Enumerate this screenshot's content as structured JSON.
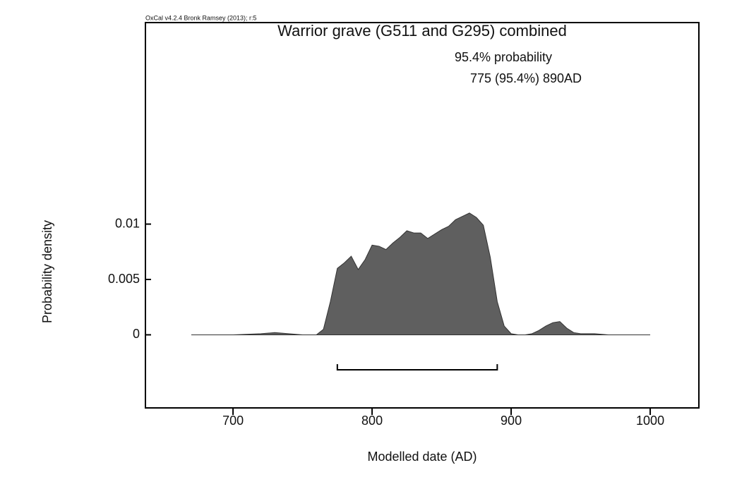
{
  "chart_data": {
    "type": "area",
    "credit": "OxCal v4.2.4 Bronk Ramsey (2013); r:5",
    "title": "Warrior grave (G511 and G295) combined",
    "probability_label": "95.4% probability",
    "range_label": "775 (95.4%) 890AD",
    "range": [
      775,
      890
    ],
    "x_label": "Modelled date (AD)",
    "y_label": "Probability density",
    "xlim": [
      637,
      1035
    ],
    "ylim": [
      -0.0066,
      0.0282
    ],
    "xticks": [
      700,
      800,
      900,
      1000
    ],
    "yticks": [
      0,
      0.005,
      0.01
    ],
    "x": [
      670,
      700,
      720,
      730,
      740,
      750,
      760,
      765,
      770,
      775,
      780,
      785,
      790,
      795,
      800,
      805,
      810,
      815,
      820,
      825,
      830,
      835,
      840,
      845,
      850,
      855,
      860,
      865,
      870,
      875,
      880,
      885,
      890,
      895,
      900,
      905,
      910,
      915,
      920,
      925,
      930,
      935,
      940,
      945,
      950,
      960,
      970,
      1000
    ],
    "series": [
      {
        "color": "#5f5f5f",
        "values": [
          0,
          0,
          0.0001,
          0.0002,
          0.0001,
          0,
          0,
          0.0005,
          0.003,
          0.006,
          0.0065,
          0.0071,
          0.0059,
          0.0068,
          0.0081,
          0.008,
          0.0077,
          0.0083,
          0.0088,
          0.0094,
          0.0092,
          0.0092,
          0.0087,
          0.0091,
          0.0095,
          0.0098,
          0.0104,
          0.0107,
          0.011,
          0.0106,
          0.0099,
          0.007,
          0.003,
          0.0008,
          0.0001,
          0,
          0,
          0.0001,
          0.0004,
          0.0008,
          0.0011,
          0.0012,
          0.0006,
          0.0002,
          0.0001,
          0.0001,
          0,
          0
        ]
      }
    ]
  }
}
